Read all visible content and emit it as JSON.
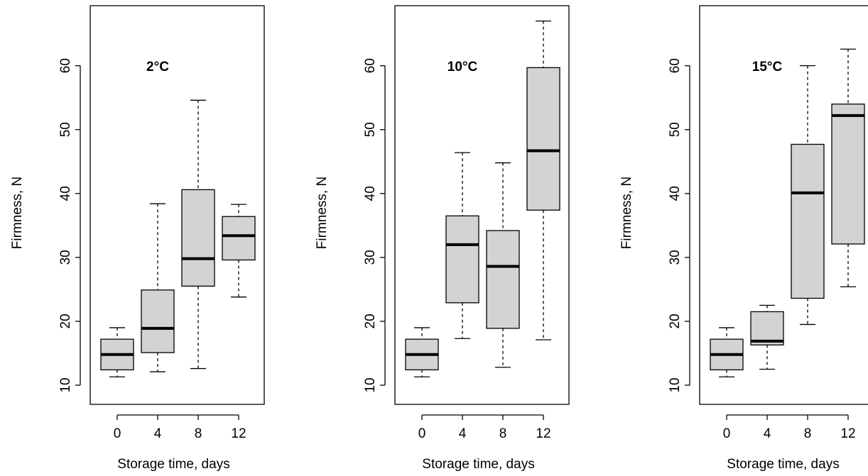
{
  "chart_data": [
    {
      "type": "box",
      "title": "2°C",
      "ylabel": "Firmness, N",
      "xlabel": "Storage time, days",
      "categories": [
        "0",
        "4",
        "8",
        "12"
      ],
      "min": [
        11.3,
        12.1,
        12.6,
        23.8
      ],
      "q1": [
        12.4,
        15.1,
        25.5,
        29.6
      ],
      "median": [
        14.8,
        18.9,
        29.8,
        33.4
      ],
      "q3": [
        17.2,
        24.9,
        40.6,
        36.4
      ],
      "max": [
        19,
        38.4,
        54.6,
        38.3
      ],
      "color": "#d3d3d3",
      "ylim": [
        7,
        69.4
      ],
      "yticks": [
        10,
        20,
        30,
        40,
        50,
        60
      ]
    },
    {
      "type": "box",
      "title": "10°C",
      "ylabel": "Firmness, N",
      "xlabel": "Storage time, days",
      "categories": [
        "0",
        "4",
        "8",
        "12"
      ],
      "min": [
        11.3,
        17.3,
        12.8,
        17.1
      ],
      "q1": [
        12.4,
        22.9,
        18.9,
        37.4
      ],
      "median": [
        14.8,
        32,
        28.6,
        46.7
      ],
      "q3": [
        17.2,
        36.5,
        34.2,
        59.7
      ],
      "max": [
        19,
        46.4,
        44.8,
        67
      ],
      "color": "#d3d3d3",
      "ylim": [
        7,
        69.4
      ],
      "yticks": [
        10,
        20,
        30,
        40,
        50,
        60
      ]
    },
    {
      "type": "box",
      "title": "15°C",
      "ylabel": "Firmness, N",
      "xlabel": "Storage time, days",
      "categories": [
        "0",
        "4",
        "8",
        "12"
      ],
      "min": [
        11.3,
        12.5,
        19.5,
        25.4
      ],
      "q1": [
        12.4,
        16.3,
        23.6,
        32.1
      ],
      "median": [
        14.8,
        16.9,
        40.1,
        52.2
      ],
      "q3": [
        17.2,
        21.5,
        47.7,
        54
      ],
      "max": [
        19,
        22.5,
        60,
        62.6
      ],
      "color": "#d3d3d3",
      "ylim": [
        7,
        69.4
      ],
      "yticks": [
        10,
        20,
        30,
        40,
        50,
        60
      ]
    }
  ]
}
